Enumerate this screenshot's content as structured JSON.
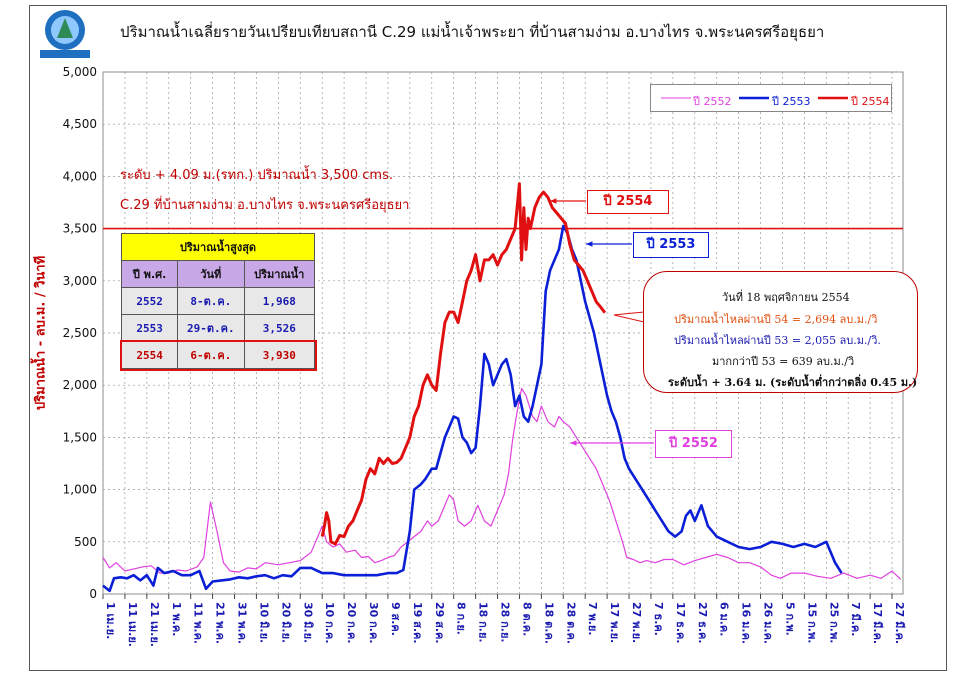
{
  "title": "ปริมาณน้ำเฉลี่ยรายวันเปรียบเทียบสถานี C.29  แม่น้ำเจ้าพระยา  ที่บ้านสามง่าม  อ.บางไทร  จ.พระนครศรีอยุธยา",
  "logo_text": "กรมชลประทาน",
  "ylabel": "ปริมาณน้ำ - ลบ.ม. / วินาที",
  "notes": {
    "level": "ระดับ + 4.09 ม.(รทก.) ปริมาณน้ำ 3,500 cms.",
    "station": "C.29   ที่บ้านสามง่าม  อ.บางไทร  จ.พระนครศรีอยุธยา"
  },
  "legend": [
    "ปี 2552",
    "ปี 2553",
    "ปี 2554"
  ],
  "callouts": {
    "y2554": "ปี 2554",
    "y2553": "ปี 2553",
    "y2552": "ปี 2552"
  },
  "max_table": {
    "title": "ปริมาณน้ำสูงสุด",
    "headers": [
      "ปี พ.ศ.",
      "วันที่",
      "ปริมาณน้ำ"
    ],
    "rows": [
      [
        "2552",
        "8-ต.ค.",
        "1,968"
      ],
      [
        "2553",
        "29-ต.ค.",
        "3,526"
      ],
      [
        "2554",
        "6-ต.ค.",
        "3,930"
      ]
    ]
  },
  "info_box": {
    "date": "วันที่ 18   พฤศจิกายน  2554",
    "line54": "ปริมาณน้ำไหลผ่านปี 54    = 2,694 ลบ.ม./วิ",
    "line53": "ปริมาณน้ำไหลผ่านปี 53    = 2,055  ลบ.ม./วิ.",
    "diff": "มากกว่าปี 53 =   639  ลบ.ม./วิ",
    "level": "ระดับน้ำ + 3.64 ม. (ระดับน้ำต่ำกว่าตลิ่ง 0.45 ม.)"
  },
  "colors": {
    "y2552": "#e040e0",
    "y2553": "#0a1fd6",
    "y2554": "#e01010",
    "threshold": "#e01010",
    "table_header": "#ffff00",
    "table_sub": "#c9a8e8"
  },
  "chart_data": {
    "type": "line",
    "ylim": [
      0,
      5000
    ],
    "yticks": [
      "0",
      "500",
      "1,000",
      "1,500",
      "2,000",
      "2,500",
      "3,000",
      "3,500",
      "4,000",
      "4,500",
      "5,000"
    ],
    "x_tick_labels": [
      "1 เม.ย.",
      "11 เม.ย.",
      "21 เม.ย.",
      "1 พ.ค.",
      "11 พ.ค.",
      "21 พ.ค.",
      "31 พ.ค.",
      "10 มิ.ย.",
      "20 มิ.ย.",
      "30 มิ.ย.",
      "10 ก.ค.",
      "20 ก.ค.",
      "30 ก.ค.",
      "9 ส.ค.",
      "19 ส.ค.",
      "29 ส.ค.",
      "8 ก.ย.",
      "18 ก.ย.",
      "28 ก.ย.",
      "8 ต.ค.",
      "18 ต.ค.",
      "28 ต.ค.",
      "7 พ.ย.",
      "17 พ.ย.",
      "27 พ.ย.",
      "7 ธ.ค.",
      "17 ธ.ค.",
      "27 ธ.ค.",
      "6 ม.ค.",
      "16 ม.ค.",
      "26 ม.ค.",
      "5 ก.พ.",
      "15 ก.พ.",
      "25 ก.พ.",
      "7 มี.ค.",
      "17 มี.ค.",
      "27 มี.ค."
    ],
    "x_unit": "days since 1 เม.ย.",
    "threshold": 3500,
    "grid": true,
    "legend_position": "top-right",
    "series": [
      {
        "name": "ปี 2552",
        "points": [
          [
            0,
            350
          ],
          [
            3,
            250
          ],
          [
            6,
            300
          ],
          [
            10,
            220
          ],
          [
            14,
            240
          ],
          [
            18,
            260
          ],
          [
            22,
            270
          ],
          [
            26,
            200
          ],
          [
            30,
            200
          ],
          [
            34,
            230
          ],
          [
            38,
            220
          ],
          [
            43,
            260
          ],
          [
            46,
            350
          ],
          [
            49,
            880
          ],
          [
            52,
            600
          ],
          [
            55,
            300
          ],
          [
            58,
            220
          ],
          [
            62,
            210
          ],
          [
            66,
            250
          ],
          [
            70,
            240
          ],
          [
            74,
            300
          ],
          [
            80,
            280
          ],
          [
            85,
            300
          ],
          [
            90,
            320
          ],
          [
            95,
            400
          ],
          [
            97,
            500
          ],
          [
            100,
            650
          ],
          [
            102,
            500
          ],
          [
            105,
            450
          ],
          [
            108,
            480
          ],
          [
            111,
            400
          ],
          [
            115,
            420
          ],
          [
            118,
            350
          ],
          [
            121,
            360
          ],
          [
            124,
            300
          ],
          [
            127,
            320
          ],
          [
            130,
            350
          ],
          [
            133,
            370
          ],
          [
            136,
            450
          ],
          [
            139,
            500
          ],
          [
            142,
            550
          ],
          [
            145,
            600
          ],
          [
            148,
            700
          ],
          [
            150,
            650
          ],
          [
            153,
            700
          ],
          [
            155,
            800
          ],
          [
            158,
            950
          ],
          [
            160,
            900
          ],
          [
            162,
            700
          ],
          [
            165,
            650
          ],
          [
            168,
            700
          ],
          [
            171,
            850
          ],
          [
            174,
            700
          ],
          [
            177,
            650
          ],
          [
            180,
            800
          ],
          [
            183,
            950
          ],
          [
            185,
            1150
          ],
          [
            187,
            1500
          ],
          [
            189,
            1750
          ],
          [
            191,
            1968
          ],
          [
            193,
            1900
          ],
          [
            196,
            1700
          ],
          [
            198,
            1650
          ],
          [
            200,
            1800
          ],
          [
            203,
            1650
          ],
          [
            206,
            1600
          ],
          [
            208,
            1700
          ],
          [
            210,
            1650
          ],
          [
            213,
            1600
          ],
          [
            216,
            1500
          ],
          [
            219,
            1400
          ],
          [
            222,
            1300
          ],
          [
            225,
            1200
          ],
          [
            228,
            1050
          ],
          [
            231,
            900
          ],
          [
            234,
            700
          ],
          [
            237,
            500
          ],
          [
            239,
            350
          ],
          [
            242,
            330
          ],
          [
            245,
            300
          ],
          [
            248,
            320
          ],
          [
            252,
            300
          ],
          [
            256,
            330
          ],
          [
            260,
            330
          ],
          [
            265,
            280
          ],
          [
            270,
            320
          ],
          [
            275,
            350
          ],
          [
            280,
            380
          ],
          [
            285,
            350
          ],
          [
            290,
            300
          ],
          [
            295,
            300
          ],
          [
            300,
            260
          ],
          [
            305,
            180
          ],
          [
            309,
            150
          ],
          [
            314,
            200
          ],
          [
            320,
            200
          ],
          [
            326,
            170
          ],
          [
            332,
            150
          ],
          [
            338,
            200
          ],
          [
            344,
            150
          ],
          [
            350,
            180
          ],
          [
            355,
            150
          ],
          [
            360,
            220
          ],
          [
            364,
            140
          ]
        ]
      },
      {
        "name": "ปี 2553",
        "points": [
          [
            0,
            80
          ],
          [
            3,
            30
          ],
          [
            5,
            150
          ],
          [
            8,
            160
          ],
          [
            11,
            150
          ],
          [
            14,
            180
          ],
          [
            17,
            130
          ],
          [
            20,
            180
          ],
          [
            23,
            80
          ],
          [
            25,
            250
          ],
          [
            28,
            200
          ],
          [
            32,
            220
          ],
          [
            36,
            180
          ],
          [
            40,
            180
          ],
          [
            44,
            220
          ],
          [
            47,
            50
          ],
          [
            50,
            120
          ],
          [
            54,
            130
          ],
          [
            58,
            140
          ],
          [
            62,
            160
          ],
          [
            66,
            150
          ],
          [
            70,
            170
          ],
          [
            74,
            180
          ],
          [
            78,
            150
          ],
          [
            82,
            180
          ],
          [
            86,
            170
          ],
          [
            90,
            250
          ],
          [
            95,
            250
          ],
          [
            100,
            200
          ],
          [
            105,
            200
          ],
          [
            110,
            180
          ],
          [
            115,
            180
          ],
          [
            120,
            180
          ],
          [
            125,
            180
          ],
          [
            130,
            200
          ],
          [
            134,
            200
          ],
          [
            137,
            230
          ],
          [
            140,
            600
          ],
          [
            142,
            1000
          ],
          [
            145,
            1050
          ],
          [
            147,
            1100
          ],
          [
            150,
            1200
          ],
          [
            152,
            1200
          ],
          [
            154,
            1350
          ],
          [
            156,
            1500
          ],
          [
            158,
            1600
          ],
          [
            160,
            1700
          ],
          [
            162,
            1680
          ],
          [
            164,
            1500
          ],
          [
            166,
            1450
          ],
          [
            168,
            1350
          ],
          [
            170,
            1400
          ],
          [
            172,
            1800
          ],
          [
            174,
            2300
          ],
          [
            176,
            2200
          ],
          [
            178,
            2000
          ],
          [
            180,
            2100
          ],
          [
            182,
            2200
          ],
          [
            184,
            2250
          ],
          [
            186,
            2100
          ],
          [
            188,
            1800
          ],
          [
            190,
            1900
          ],
          [
            192,
            1700
          ],
          [
            194,
            1650
          ],
          [
            196,
            1800
          ],
          [
            198,
            2000
          ],
          [
            200,
            2200
          ],
          [
            202,
            2900
          ],
          [
            204,
            3100
          ],
          [
            206,
            3200
          ],
          [
            208,
            3300
          ],
          [
            210,
            3526
          ],
          [
            212,
            3450
          ],
          [
            214,
            3300
          ],
          [
            216,
            3200
          ],
          [
            218,
            3000
          ],
          [
            220,
            2800
          ],
          [
            222,
            2650
          ],
          [
            224,
            2500
          ],
          [
            226,
            2300
          ],
          [
            228,
            2100
          ],
          [
            230,
            1900
          ],
          [
            232,
            1750
          ],
          [
            234,
            1650
          ],
          [
            236,
            1500
          ],
          [
            238,
            1300
          ],
          [
            240,
            1200
          ],
          [
            243,
            1100
          ],
          [
            246,
            1000
          ],
          [
            249,
            900
          ],
          [
            252,
            800
          ],
          [
            255,
            700
          ],
          [
            258,
            600
          ],
          [
            261,
            550
          ],
          [
            264,
            600
          ],
          [
            266,
            750
          ],
          [
            268,
            800
          ],
          [
            270,
            700
          ],
          [
            273,
            850
          ],
          [
            276,
            650
          ],
          [
            280,
            550
          ],
          [
            285,
            500
          ],
          [
            290,
            450
          ],
          [
            295,
            430
          ],
          [
            300,
            450
          ],
          [
            305,
            500
          ],
          [
            310,
            480
          ],
          [
            315,
            450
          ],
          [
            320,
            480
          ],
          [
            325,
            450
          ],
          [
            330,
            500
          ],
          [
            334,
            300
          ],
          [
            337,
            200
          ]
        ]
      },
      {
        "name": "ปี 2554",
        "points": [
          [
            100,
            550
          ],
          [
            101,
            650
          ],
          [
            102,
            780
          ],
          [
            103,
            700
          ],
          [
            104,
            500
          ],
          [
            106,
            480
          ],
          [
            108,
            560
          ],
          [
            110,
            550
          ],
          [
            112,
            650
          ],
          [
            114,
            700
          ],
          [
            116,
            800
          ],
          [
            118,
            900
          ],
          [
            120,
            1100
          ],
          [
            122,
            1200
          ],
          [
            124,
            1150
          ],
          [
            126,
            1300
          ],
          [
            128,
            1250
          ],
          [
            130,
            1300
          ],
          [
            132,
            1250
          ],
          [
            134,
            1260
          ],
          [
            136,
            1300
          ],
          [
            138,
            1400
          ],
          [
            140,
            1500
          ],
          [
            142,
            1700
          ],
          [
            144,
            1800
          ],
          [
            146,
            2000
          ],
          [
            148,
            2100
          ],
          [
            150,
            2000
          ],
          [
            152,
            1950
          ],
          [
            154,
            2300
          ],
          [
            156,
            2600
          ],
          [
            158,
            2700
          ],
          [
            160,
            2700
          ],
          [
            162,
            2600
          ],
          [
            164,
            2800
          ],
          [
            166,
            3000
          ],
          [
            168,
            3100
          ],
          [
            170,
            3250
          ],
          [
            172,
            3000
          ],
          [
            174,
            3200
          ],
          [
            176,
            3200
          ],
          [
            178,
            3250
          ],
          [
            180,
            3150
          ],
          [
            182,
            3250
          ],
          [
            184,
            3300
          ],
          [
            186,
            3400
          ],
          [
            188,
            3500
          ],
          [
            190,
            3930
          ],
          [
            191,
            3200
          ],
          [
            192,
            3700
          ],
          [
            193,
            3300
          ],
          [
            194,
            3600
          ],
          [
            195,
            3500
          ],
          [
            197,
            3700
          ],
          [
            199,
            3800
          ],
          [
            201,
            3850
          ],
          [
            203,
            3800
          ],
          [
            205,
            3700
          ],
          [
            207,
            3650
          ],
          [
            209,
            3600
          ],
          [
            211,
            3550
          ],
          [
            213,
            3350
          ],
          [
            215,
            3200
          ],
          [
            217,
            3150
          ],
          [
            219,
            3100
          ],
          [
            221,
            3000
          ],
          [
            223,
            2900
          ],
          [
            225,
            2800
          ],
          [
            227,
            2750
          ],
          [
            229,
            2694
          ]
        ]
      }
    ]
  }
}
